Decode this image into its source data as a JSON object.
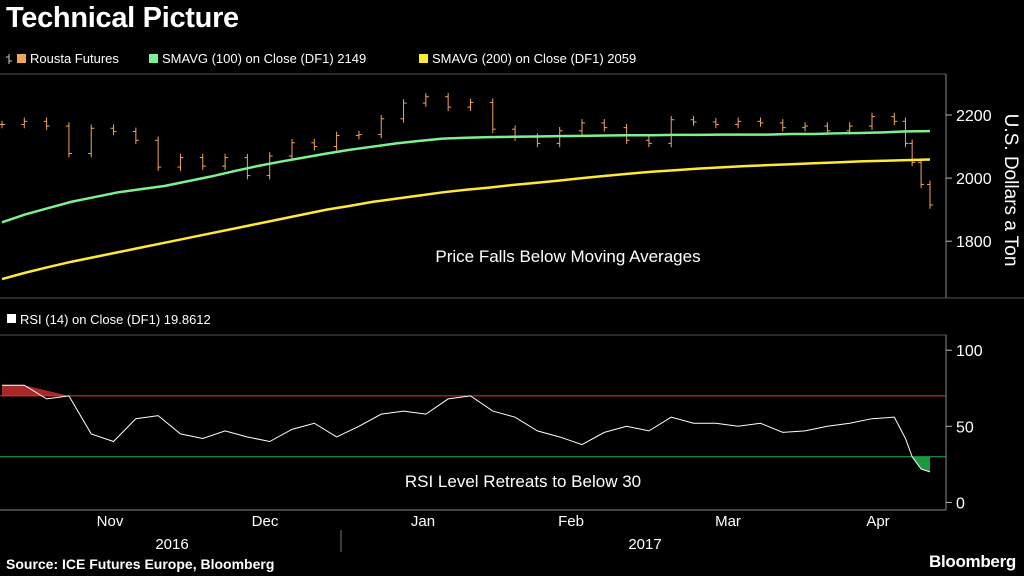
{
  "title": "Technical Picture",
  "source": "Source: ICE Futures Europe, Bloomberg",
  "brand": "Bloomberg",
  "colors": {
    "price": "#f2a65a",
    "sma100": "#7ef08e",
    "sma200": "#ffe933",
    "rsi": "#ffffff",
    "overbought": "#e03535",
    "oversold": "#22b14c",
    "axis": "#bbbbbb"
  },
  "chart_data": [
    {
      "type": "line",
      "panel": "price",
      "legend": [
        {
          "label": "Rousta Futures",
          "marker": "ohlc-icon"
        },
        {
          "label": "SMAVG (100) on Close (DF1) 2149",
          "marker": "sma100-swatch"
        },
        {
          "label": "SMAVG (200) on Close (DF1) 2059",
          "marker": "sma200-swatch"
        }
      ],
      "ylabel": "U.S. Dollars a Ton",
      "ylim": [
        1620,
        2330
      ],
      "yticks": [
        1800,
        2000,
        2200
      ],
      "annotation": "Price Falls Below Moving Averages",
      "x": [
        0,
        5,
        10,
        15,
        20,
        25,
        30,
        35,
        40,
        45,
        50,
        55,
        60,
        65,
        70,
        75,
        80,
        85,
        90,
        95,
        100,
        105,
        110,
        115,
        120,
        125,
        130,
        135,
        140,
        145,
        150,
        155,
        160,
        165,
        170,
        175,
        180,
        185,
        190,
        195,
        200
      ],
      "series": [
        {
          "name": "Rousta Futures",
          "values": [
            2170,
            2172,
            2180,
            2178,
            2165,
            2190,
            2078,
            2150,
            2158,
            2098,
            2148,
            2160,
            2120,
            2048,
            2035,
            2090,
            2065,
            2060,
            2038,
            2002,
            2065,
            2020,
            2008,
            2042,
            2070,
            2110,
            2112,
            2092,
            2100,
            2068,
            2135,
            2155,
            2138,
            2148,
            2188,
            2170,
            2238,
            2248,
            2258,
            2230,
            2225
          ]
        },
        {
          "name": "SMAVG (100) on Close (DF1) 2149",
          "values": [
            1860,
            1885,
            1905,
            1925,
            1940,
            1955,
            1965,
            1975,
            1990,
            2005,
            2022,
            2038,
            2052,
            2065,
            2078,
            2090,
            2100,
            2110,
            2118,
            2125,
            2128,
            2130,
            2131,
            2132,
            2133,
            2134,
            2135,
            2136,
            2136,
            2137,
            2137,
            2138,
            2138,
            2138,
            2140,
            2140,
            2142,
            2143,
            2145,
            2148,
            2149
          ]
        },
        {
          "name": "SMAVG (200) on Close (DF1) 2059",
          "values": [
            1680,
            1700,
            1718,
            1735,
            1750,
            1765,
            1780,
            1795,
            1810,
            1825,
            1840,
            1855,
            1870,
            1885,
            1900,
            1912,
            1925,
            1935,
            1945,
            1955,
            1963,
            1970,
            1978,
            1985,
            1992,
            2000,
            2007,
            2014,
            2020,
            2025,
            2030,
            2034,
            2038,
            2041,
            2044,
            2047,
            2050,
            2053,
            2055,
            2057,
            2059
          ]
        }
      ],
      "price_tail": [
        {
          "x": 0,
          "value": 2170
        },
        {
          "x": 10,
          "value": 2180
        },
        {
          "x": 20,
          "value": 2165
        },
        {
          "x": 30,
          "value": 2078
        },
        {
          "x": 40,
          "value": 2158
        },
        {
          "x": 50,
          "value": 2148
        },
        {
          "x": 60,
          "value": 2120
        },
        {
          "x": 70,
          "value": 2035
        },
        {
          "x": 80,
          "value": 2065
        },
        {
          "x": 90,
          "value": 2038
        },
        {
          "x": 100,
          "value": 2065
        },
        {
          "x": 110,
          "value": 2008
        },
        {
          "x": 120,
          "value": 2070
        },
        {
          "x": 130,
          "value": 2112
        },
        {
          "x": 140,
          "value": 2100
        },
        {
          "x": 150,
          "value": 2135
        },
        {
          "x": 160,
          "value": 2138
        },
        {
          "x": 170,
          "value": 2188
        },
        {
          "x": 180,
          "value": 2238
        },
        {
          "x": 190,
          "value": 2258
        },
        {
          "x": 200,
          "value": 2225
        },
        {
          "x": 210,
          "value": 2240
        },
        {
          "x": 220,
          "value": 2155
        },
        {
          "x": 230,
          "value": 2130
        },
        {
          "x": 240,
          "value": 2110
        },
        {
          "x": 250,
          "value": 2150
        },
        {
          "x": 260,
          "value": 2175
        },
        {
          "x": 270,
          "value": 2160
        },
        {
          "x": 280,
          "value": 2120
        },
        {
          "x": 290,
          "value": 2110
        },
        {
          "x": 300,
          "value": 2185
        },
        {
          "x": 310,
          "value": 2178
        },
        {
          "x": 320,
          "value": 2170
        },
        {
          "x": 330,
          "value": 2180
        },
        {
          "x": 340,
          "value": 2175
        },
        {
          "x": 350,
          "value": 2160
        },
        {
          "x": 360,
          "value": 2165
        },
        {
          "x": 370,
          "value": 2150
        },
        {
          "x": 380,
          "value": 2165
        },
        {
          "x": 390,
          "value": 2195
        },
        {
          "x": 400,
          "value": 2180
        },
        {
          "x": 405,
          "value": 2110
        },
        {
          "x": 408,
          "value": 2050
        },
        {
          "x": 412,
          "value": 1980
        },
        {
          "x": 416,
          "value": 1915
        }
      ]
    },
    {
      "type": "line",
      "panel": "rsi",
      "legend": [
        {
          "label": "RSI (14) on Close (DF1) 19.8612",
          "marker": "rsi-swatch"
        }
      ],
      "ylim": [
        -5,
        110
      ],
      "yticks": [
        0,
        50,
        100
      ],
      "overbought": 70,
      "oversold": 30,
      "annotation": "RSI Level Retreats to Below 30",
      "x": [
        0,
        10,
        20,
        30,
        40,
        50,
        60,
        70,
        80,
        90,
        100,
        110,
        120,
        130,
        140,
        150,
        160,
        170,
        180,
        190,
        200,
        210,
        220,
        230,
        240,
        250,
        260,
        270,
        280,
        290,
        300,
        310,
        320,
        330,
        340,
        350,
        360,
        370,
        380,
        390,
        400,
        405,
        408,
        412,
        416
      ],
      "values": [
        77,
        77,
        68,
        70,
        45,
        40,
        55,
        57,
        45,
        42,
        47,
        43,
        40,
        48,
        52,
        43,
        50,
        58,
        60,
        58,
        68,
        70,
        60,
        56,
        47,
        43,
        38,
        46,
        50,
        47,
        56,
        52,
        52,
        50,
        52,
        46,
        47,
        50,
        52,
        55,
        56,
        42,
        30,
        22,
        20
      ]
    }
  ],
  "x_axis": {
    "months": [
      "Nov",
      "Dec",
      "Jan",
      "Feb",
      "Mar",
      "Apr"
    ],
    "years": [
      "2016",
      "2017"
    ]
  }
}
